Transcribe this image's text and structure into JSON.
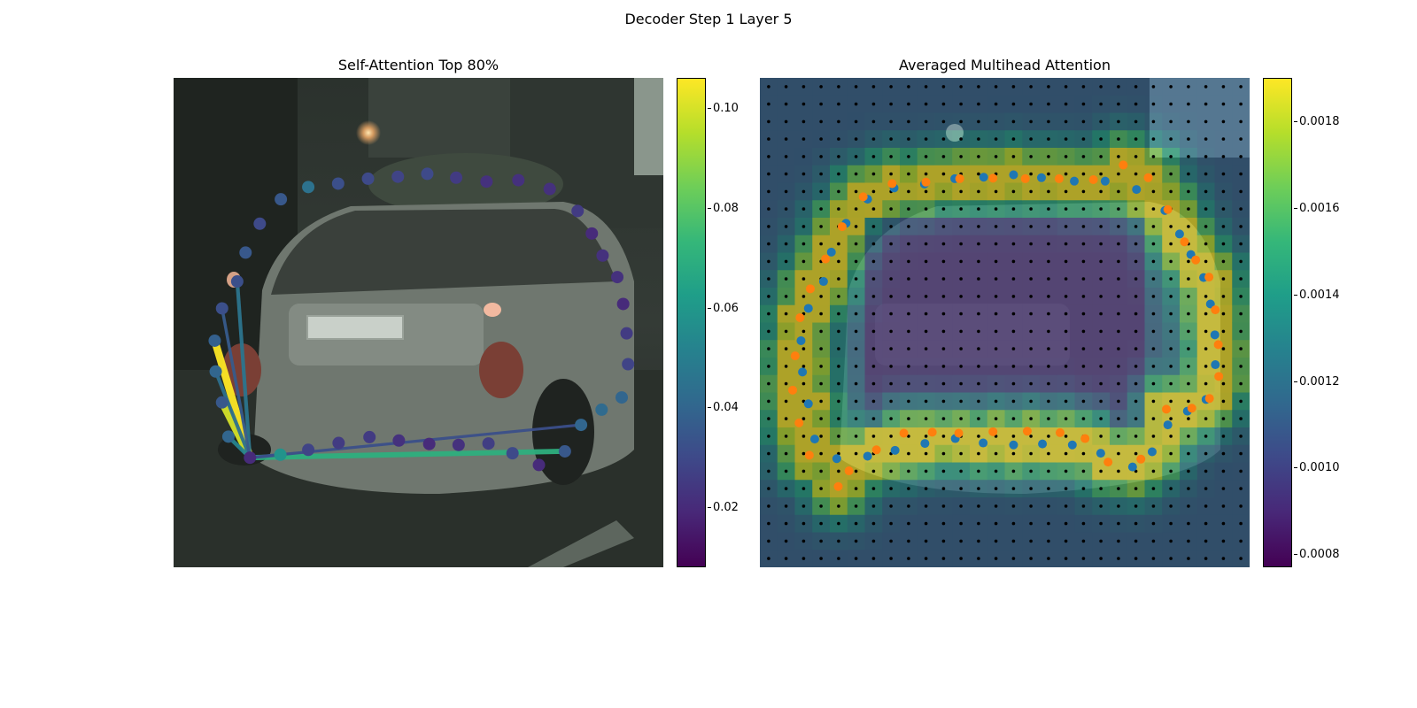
{
  "figure": {
    "suptitle": "Decoder Step 1 Layer 5"
  },
  "chart_data": [
    {
      "type": "scatter",
      "title": "Self-Attention Top 80%",
      "background": "car-rear-street-photo",
      "colormap": "viridis",
      "colorbar": {
        "range": [
          0.008,
          0.106
        ],
        "ticks": [
          "0.10",
          "0.08",
          "0.06",
          "0.04",
          "0.02"
        ]
      },
      "query_point_index": 0,
      "points": [
        {
          "x": 0.156,
          "y": 0.776,
          "w": 0.02
        },
        {
          "x": 0.218,
          "y": 0.77,
          "w": 0.058
        },
        {
          "x": 0.275,
          "y": 0.76,
          "w": 0.028
        },
        {
          "x": 0.337,
          "y": 0.746,
          "w": 0.025
        },
        {
          "x": 0.4,
          "y": 0.734,
          "w": 0.025
        },
        {
          "x": 0.46,
          "y": 0.741,
          "w": 0.022
        },
        {
          "x": 0.522,
          "y": 0.748,
          "w": 0.02
        },
        {
          "x": 0.582,
          "y": 0.75,
          "w": 0.022
        },
        {
          "x": 0.643,
          "y": 0.747,
          "w": 0.026
        },
        {
          "x": 0.692,
          "y": 0.767,
          "w": 0.03
        },
        {
          "x": 0.746,
          "y": 0.791,
          "w": 0.02
        },
        {
          "x": 0.799,
          "y": 0.763,
          "w": 0.035
        },
        {
          "x": 0.832,
          "y": 0.709,
          "w": 0.04
        },
        {
          "x": 0.874,
          "y": 0.678,
          "w": 0.042
        },
        {
          "x": 0.915,
          "y": 0.653,
          "w": 0.04
        },
        {
          "x": 0.928,
          "y": 0.585,
          "w": 0.028
        },
        {
          "x": 0.925,
          "y": 0.522,
          "w": 0.025
        },
        {
          "x": 0.918,
          "y": 0.462,
          "w": 0.02
        },
        {
          "x": 0.906,
          "y": 0.407,
          "w": 0.022
        },
        {
          "x": 0.876,
          "y": 0.363,
          "w": 0.022
        },
        {
          "x": 0.854,
          "y": 0.318,
          "w": 0.02
        },
        {
          "x": 0.825,
          "y": 0.272,
          "w": 0.025
        },
        {
          "x": 0.768,
          "y": 0.227,
          "w": 0.022
        },
        {
          "x": 0.704,
          "y": 0.209,
          "w": 0.022
        },
        {
          "x": 0.639,
          "y": 0.212,
          "w": 0.022
        },
        {
          "x": 0.577,
          "y": 0.204,
          "w": 0.025
        },
        {
          "x": 0.518,
          "y": 0.196,
          "w": 0.03
        },
        {
          "x": 0.458,
          "y": 0.202,
          "w": 0.028
        },
        {
          "x": 0.397,
          "y": 0.206,
          "w": 0.03
        },
        {
          "x": 0.336,
          "y": 0.216,
          "w": 0.032
        },
        {
          "x": 0.275,
          "y": 0.223,
          "w": 0.045
        },
        {
          "x": 0.219,
          "y": 0.248,
          "w": 0.035
        },
        {
          "x": 0.176,
          "y": 0.298,
          "w": 0.03
        },
        {
          "x": 0.147,
          "y": 0.357,
          "w": 0.035
        },
        {
          "x": 0.13,
          "y": 0.416,
          "w": 0.032
        },
        {
          "x": 0.099,
          "y": 0.471,
          "w": 0.032
        },
        {
          "x": 0.084,
          "y": 0.537,
          "w": 0.038
        },
        {
          "x": 0.086,
          "y": 0.6,
          "w": 0.04
        },
        {
          "x": 0.099,
          "y": 0.663,
          "w": 0.035
        },
        {
          "x": 0.112,
          "y": 0.733,
          "w": 0.04
        }
      ],
      "edges": [
        {
          "to": 36,
          "w": 0.106
        },
        {
          "to": 38,
          "w": 0.1
        },
        {
          "to": 11,
          "w": 0.07
        },
        {
          "to": 34,
          "w": 0.046
        },
        {
          "to": 37,
          "w": 0.044
        },
        {
          "to": 39,
          "w": 0.052
        },
        {
          "to": 35,
          "w": 0.036
        },
        {
          "to": 1,
          "w": 0.04
        },
        {
          "to": 12,
          "w": 0.032
        }
      ]
    },
    {
      "type": "heatmap",
      "title": "Averaged Multihead Attention",
      "background": "car-rear-street-photo",
      "colormap": "viridis",
      "colorbar": {
        "range": [
          0.00077,
          0.0019
        ],
        "ticks": [
          "0.0018",
          "0.0016",
          "0.0014",
          "0.0012",
          "0.0010",
          "0.0008"
        ]
      },
      "grid_size": [
        28,
        28
      ],
      "reference_dots": "black",
      "predicted_points_color": "#ff7f0e",
      "target_points_color": "#1f77b4",
      "predicted_points": [
        {
          "x": 0.182,
          "y": 0.803
        },
        {
          "x": 0.238,
          "y": 0.76
        },
        {
          "x": 0.294,
          "y": 0.726
        },
        {
          "x": 0.352,
          "y": 0.724
        },
        {
          "x": 0.406,
          "y": 0.726
        },
        {
          "x": 0.476,
          "y": 0.723
        },
        {
          "x": 0.546,
          "y": 0.722
        },
        {
          "x": 0.613,
          "y": 0.725
        },
        {
          "x": 0.664,
          "y": 0.737
        },
        {
          "x": 0.711,
          "y": 0.785
        },
        {
          "x": 0.778,
          "y": 0.779
        },
        {
          "x": 0.83,
          "y": 0.677
        },
        {
          "x": 0.882,
          "y": 0.675
        },
        {
          "x": 0.918,
          "y": 0.655
        },
        {
          "x": 0.937,
          "y": 0.61
        },
        {
          "x": 0.936,
          "y": 0.545
        },
        {
          "x": 0.93,
          "y": 0.474
        },
        {
          "x": 0.917,
          "y": 0.407
        },
        {
          "x": 0.89,
          "y": 0.372
        },
        {
          "x": 0.867,
          "y": 0.335
        },
        {
          "x": 0.833,
          "y": 0.269
        },
        {
          "x": 0.793,
          "y": 0.204
        },
        {
          "x": 0.742,
          "y": 0.178
        },
        {
          "x": 0.681,
          "y": 0.208
        },
        {
          "x": 0.611,
          "y": 0.206
        },
        {
          "x": 0.542,
          "y": 0.206
        },
        {
          "x": 0.476,
          "y": 0.205
        },
        {
          "x": 0.408,
          "y": 0.206
        },
        {
          "x": 0.339,
          "y": 0.213
        },
        {
          "x": 0.27,
          "y": 0.216
        },
        {
          "x": 0.211,
          "y": 0.243
        },
        {
          "x": 0.168,
          "y": 0.304
        },
        {
          "x": 0.134,
          "y": 0.37
        },
        {
          "x": 0.103,
          "y": 0.431
        },
        {
          "x": 0.082,
          "y": 0.49
        },
        {
          "x": 0.072,
          "y": 0.568
        },
        {
          "x": 0.067,
          "y": 0.638
        },
        {
          "x": 0.08,
          "y": 0.705
        },
        {
          "x": 0.101,
          "y": 0.771
        },
        {
          "x": 0.16,
          "y": 0.835
        }
      ],
      "target_points": [
        {
          "x": 0.157,
          "y": 0.778
        },
        {
          "x": 0.22,
          "y": 0.773
        },
        {
          "x": 0.276,
          "y": 0.761
        },
        {
          "x": 0.337,
          "y": 0.747
        },
        {
          "x": 0.399,
          "y": 0.737
        },
        {
          "x": 0.456,
          "y": 0.746
        },
        {
          "x": 0.518,
          "y": 0.75
        },
        {
          "x": 0.577,
          "y": 0.748
        },
        {
          "x": 0.638,
          "y": 0.75
        },
        {
          "x": 0.696,
          "y": 0.767
        },
        {
          "x": 0.761,
          "y": 0.795
        },
        {
          "x": 0.801,
          "y": 0.764
        },
        {
          "x": 0.833,
          "y": 0.709
        },
        {
          "x": 0.873,
          "y": 0.681
        },
        {
          "x": 0.911,
          "y": 0.657
        },
        {
          "x": 0.93,
          "y": 0.586
        },
        {
          "x": 0.929,
          "y": 0.525
        },
        {
          "x": 0.92,
          "y": 0.462
        },
        {
          "x": 0.906,
          "y": 0.408
        },
        {
          "x": 0.88,
          "y": 0.361
        },
        {
          "x": 0.857,
          "y": 0.319
        },
        {
          "x": 0.827,
          "y": 0.271
        },
        {
          "x": 0.769,
          "y": 0.228
        },
        {
          "x": 0.705,
          "y": 0.211
        },
        {
          "x": 0.642,
          "y": 0.211
        },
        {
          "x": 0.575,
          "y": 0.204
        },
        {
          "x": 0.518,
          "y": 0.198
        },
        {
          "x": 0.457,
          "y": 0.203
        },
        {
          "x": 0.398,
          "y": 0.206
        },
        {
          "x": 0.336,
          "y": 0.217
        },
        {
          "x": 0.274,
          "y": 0.225
        },
        {
          "x": 0.22,
          "y": 0.248
        },
        {
          "x": 0.176,
          "y": 0.297
        },
        {
          "x": 0.146,
          "y": 0.356
        },
        {
          "x": 0.13,
          "y": 0.416
        },
        {
          "x": 0.099,
          "y": 0.471
        },
        {
          "x": 0.084,
          "y": 0.537
        },
        {
          "x": 0.087,
          "y": 0.601
        },
        {
          "x": 0.099,
          "y": 0.666
        },
        {
          "x": 0.112,
          "y": 0.738
        }
      ]
    }
  ]
}
